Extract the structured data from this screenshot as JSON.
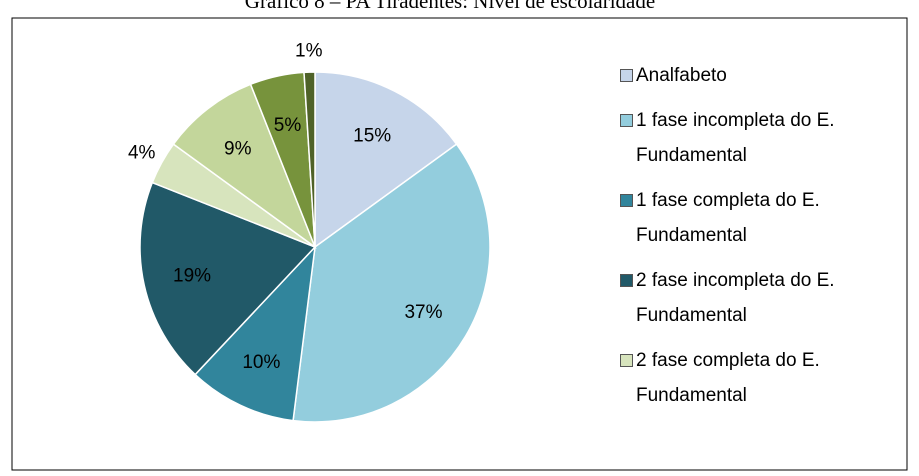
{
  "chart_data": {
    "type": "pie",
    "title": "Gráfico 8 – PA Tiradentes: Nível de escolaridade",
    "categories": [
      "Analfabeto",
      "1 fase incompleta do E. Fundamental",
      "1 fase completa do E. Fundamental",
      "2 fase incompleta do E. Fundamental",
      "2 fase completa do E. Fundamental",
      null,
      null,
      null
    ],
    "values": [
      15,
      37,
      10,
      19,
      4,
      9,
      5,
      1
    ],
    "value_labels": [
      "15%",
      "37%",
      "10%",
      "19%",
      "4%",
      "9%",
      "5%",
      "1%"
    ],
    "colors": [
      "#c6d5ea",
      "#93cddd",
      "#31859c",
      "#215968",
      "#d7e4bd",
      "#c3d69b",
      "#77933c",
      "#4f6228"
    ],
    "legend": "right"
  }
}
